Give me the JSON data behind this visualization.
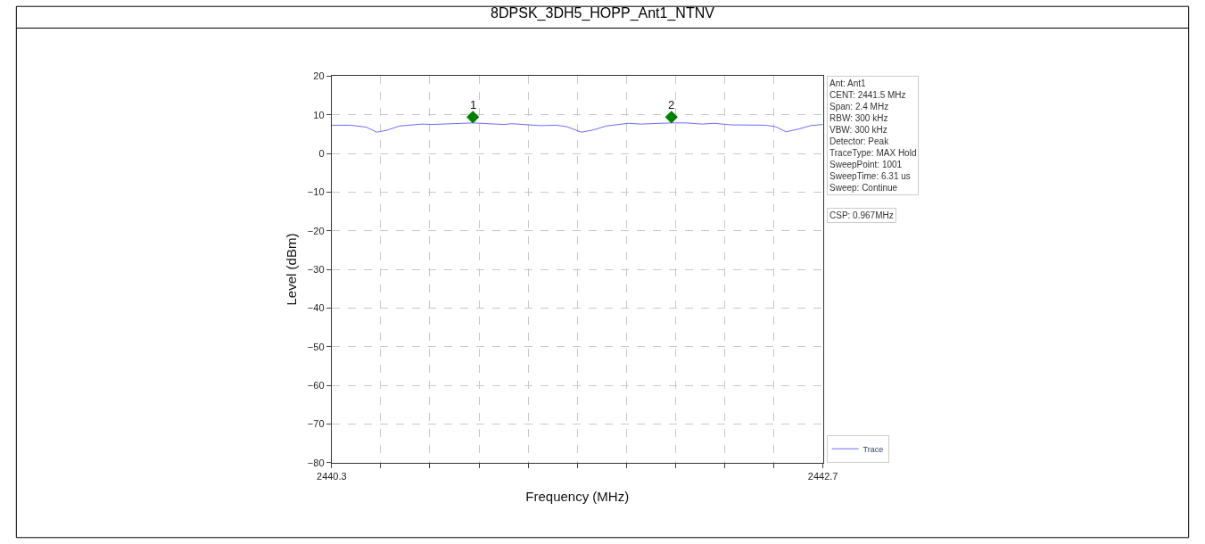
{
  "chart_data": {
    "type": "line",
    "title": "8DPSK_3DH5_HOPP_Ant1_NTNV",
    "xlabel": "Frequency (MHz)",
    "ylabel": "Level (dBm)",
    "annotations": [
      "Ant: Ant1\nCENT: 2441.5 MHz\nSpan: 2.4 MHz\nRBW: 300 kHz\nVBW: 300 kHz\nDetector: Peak\nTraceType: MAX Hold\nSweepPoint: 1001\nSweepTime: 6.31 us\nSweep: Continue",
      "CSP: 0.967MHz",
      {
        "text": "1",
        "x": 2440.99,
        "y": 9.4
      },
      {
        "text": "2",
        "x": 2441.96,
        "y": 9.4
      }
    ],
    "series": [
      {
        "name": "Trace",
        "color": "#6b6bff",
        "marker": "none",
        "x": [
          2440.3,
          2440.395,
          2440.47,
          2440.52,
          2440.57,
          2440.63,
          2440.74,
          2440.79,
          2440.99,
          2441.1,
          2441.14,
          2441.18,
          2441.32,
          2441.4,
          2441.45,
          2441.52,
          2441.58,
          2441.64,
          2441.75,
          2441.81,
          2441.96,
          2442.03,
          2442.11,
          2442.17,
          2442.25,
          2442.42,
          2442.47,
          2442.52,
          2442.58,
          2442.64,
          2442.7
        ],
        "values": [
          7.3,
          7.3,
          6.8,
          5.5,
          6.0,
          7.1,
          7.6,
          7.5,
          7.9,
          7.6,
          7.5,
          7.7,
          7.2,
          7.3,
          6.9,
          5.5,
          6.1,
          7.1,
          7.8,
          7.6,
          7.9,
          7.9,
          7.6,
          7.8,
          7.4,
          7.3,
          6.9,
          5.6,
          6.3,
          7.2,
          7.5
        ]
      },
      {
        "color": "#008000",
        "type": "scatter",
        "marker": "diamond",
        "x": [
          2440.99,
          2441.96
        ],
        "values": [
          9.4,
          9.4
        ]
      }
    ],
    "xlim": [
      2440.3,
      2442.7
    ],
    "xticks": [
      2440.3,
      {
        "value": 2440.54,
        "label": null
      },
      {
        "value": 2440.78,
        "label": null
      },
      {
        "value": 2441.02,
        "label": null
      },
      {
        "value": 2441.26,
        "label": null
      },
      {
        "value": 2441.5,
        "label": null
      },
      {
        "value": 2441.74,
        "label": null
      },
      {
        "value": 2441.98,
        "label": null
      },
      {
        "value": 2442.22,
        "label": null
      },
      {
        "value": 2442.46,
        "label": null
      },
      2442.7
    ],
    "ylim": [
      -80,
      20
    ],
    "yticks": [
      -80,
      -70,
      -60,
      -50,
      -40,
      -30,
      -20,
      -10,
      0,
      10,
      20
    ],
    "grid": true,
    "legend": "bottom right",
    "line_style": "solid"
  }
}
